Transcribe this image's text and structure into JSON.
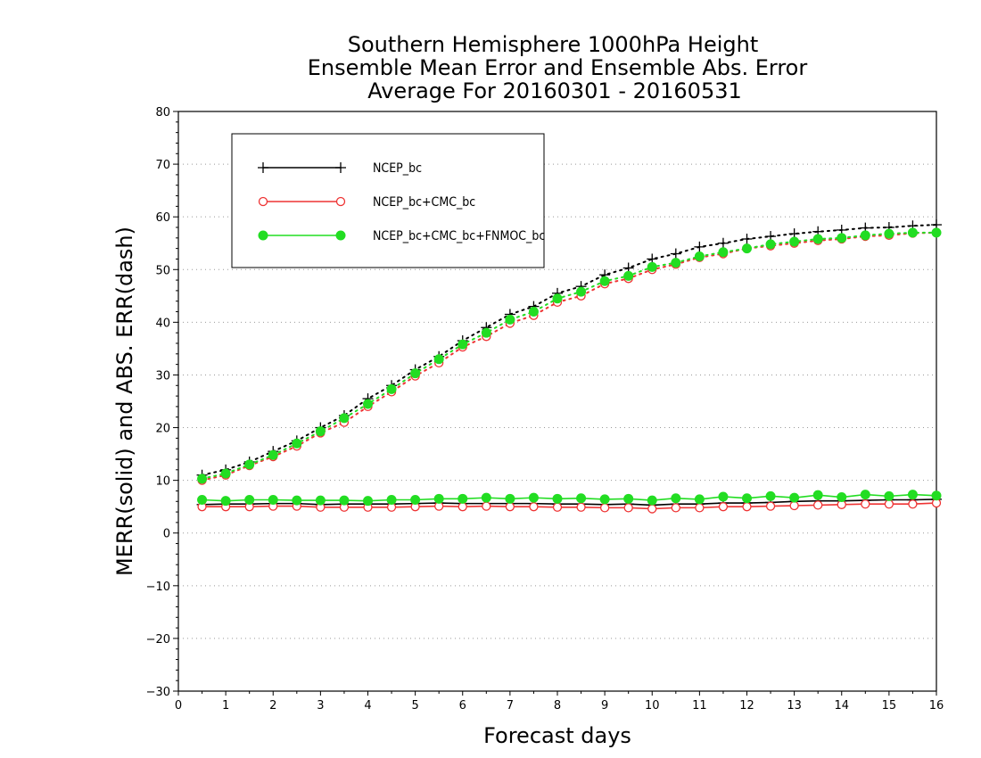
{
  "chart_data": {
    "type": "line",
    "title": [
      "Southern Hemisphere 1000hPa Height",
      "Ensemble Mean Error and Ensemble Abs. Error",
      "Average For 20160301 - 20160531"
    ],
    "xlabel": "Forecast days",
    "ylabel": "MERR(solid) and ABS. ERR(dash)",
    "xlim": [
      0,
      16
    ],
    "ylim": [
      -30,
      80
    ],
    "xticks": [
      "0",
      "1",
      "2",
      "3",
      "4",
      "5",
      "6",
      "7",
      "8",
      "9",
      "10",
      "11",
      "12",
      "13",
      "14",
      "15",
      "16"
    ],
    "yticks": [
      "80",
      "70",
      "60",
      "50",
      "40",
      "30",
      "20",
      "10",
      "0",
      "−10",
      "−20",
      "−30"
    ],
    "grid": "horizontal dotted",
    "legend_position": "top-left",
    "x": [
      0.5,
      1,
      1.5,
      2,
      2.5,
      3,
      3.5,
      4,
      4.5,
      5,
      5.5,
      6,
      6.5,
      7,
      7.5,
      8,
      8.5,
      9,
      9.5,
      10,
      10.5,
      11,
      11.5,
      12,
      12.5,
      13,
      13.5,
      14,
      14.5,
      15,
      15.5,
      16
    ],
    "series": [
      {
        "name": "NCEP_bc",
        "color": "#000000",
        "marker": "plus",
        "merr": [
          5.4,
          5.5,
          5.5,
          5.6,
          5.6,
          5.4,
          5.5,
          5.5,
          5.5,
          5.6,
          5.7,
          5.6,
          5.6,
          5.6,
          5.6,
          5.5,
          5.5,
          5.4,
          5.5,
          5.3,
          5.5,
          5.5,
          5.7,
          5.7,
          5.8,
          6.0,
          6.1,
          6.1,
          6.2,
          6.3,
          6.3,
          6.4
        ],
        "abs_err": [
          11.0,
          12.0,
          13.5,
          15.5,
          17.5,
          20.0,
          22.3,
          25.5,
          28.0,
          31.0,
          33.5,
          36.5,
          39.0,
          41.5,
          43.0,
          45.5,
          46.8,
          49.0,
          50.3,
          52.0,
          53.0,
          54.3,
          55.0,
          55.8,
          56.3,
          56.8,
          57.2,
          57.5,
          57.9,
          58.0,
          58.3,
          58.5
        ]
      },
      {
        "name": "NCEP_bc+CMC_bc",
        "color": "#ee3333",
        "marker": "open-circle",
        "merr": [
          5.0,
          5.0,
          5.0,
          5.1,
          5.1,
          4.9,
          4.9,
          4.9,
          4.9,
          5.0,
          5.1,
          5.0,
          5.1,
          5.0,
          5.0,
          4.9,
          4.9,
          4.8,
          4.8,
          4.6,
          4.8,
          4.8,
          5.0,
          5.0,
          5.1,
          5.2,
          5.3,
          5.4,
          5.5,
          5.5,
          5.5,
          5.7
        ],
        "abs_err": [
          10.0,
          11.0,
          12.8,
          14.5,
          16.5,
          19.0,
          21.0,
          24.0,
          26.8,
          29.8,
          32.3,
          35.3,
          37.3,
          39.8,
          41.3,
          43.8,
          45.0,
          47.3,
          48.3,
          50.0,
          51.0,
          52.3,
          53.0,
          54.0,
          54.5,
          55.0,
          55.5,
          55.8,
          56.3,
          56.5,
          56.9,
          57.0
        ]
      },
      {
        "name": "NCEP_bc+CMC_bc+FNMOC_bc",
        "color": "#22dd22",
        "marker": "filled-circle",
        "merr": [
          6.3,
          6.1,
          6.3,
          6.3,
          6.2,
          6.2,
          6.2,
          6.1,
          6.3,
          6.3,
          6.5,
          6.5,
          6.7,
          6.5,
          6.7,
          6.5,
          6.6,
          6.4,
          6.5,
          6.2,
          6.6,
          6.4,
          6.9,
          6.6,
          7.0,
          6.7,
          7.2,
          6.8,
          7.3,
          7.0,
          7.3,
          7.1
        ],
        "abs_err": [
          10.3,
          11.3,
          13.0,
          14.8,
          17.0,
          19.3,
          21.8,
          24.5,
          27.3,
          30.3,
          33.0,
          35.8,
          38.0,
          40.5,
          42.0,
          44.5,
          45.8,
          47.8,
          48.8,
          50.5,
          51.3,
          52.5,
          53.3,
          54.0,
          54.8,
          55.3,
          55.8,
          56.0,
          56.5,
          56.8,
          57.0,
          57.0
        ]
      }
    ]
  }
}
